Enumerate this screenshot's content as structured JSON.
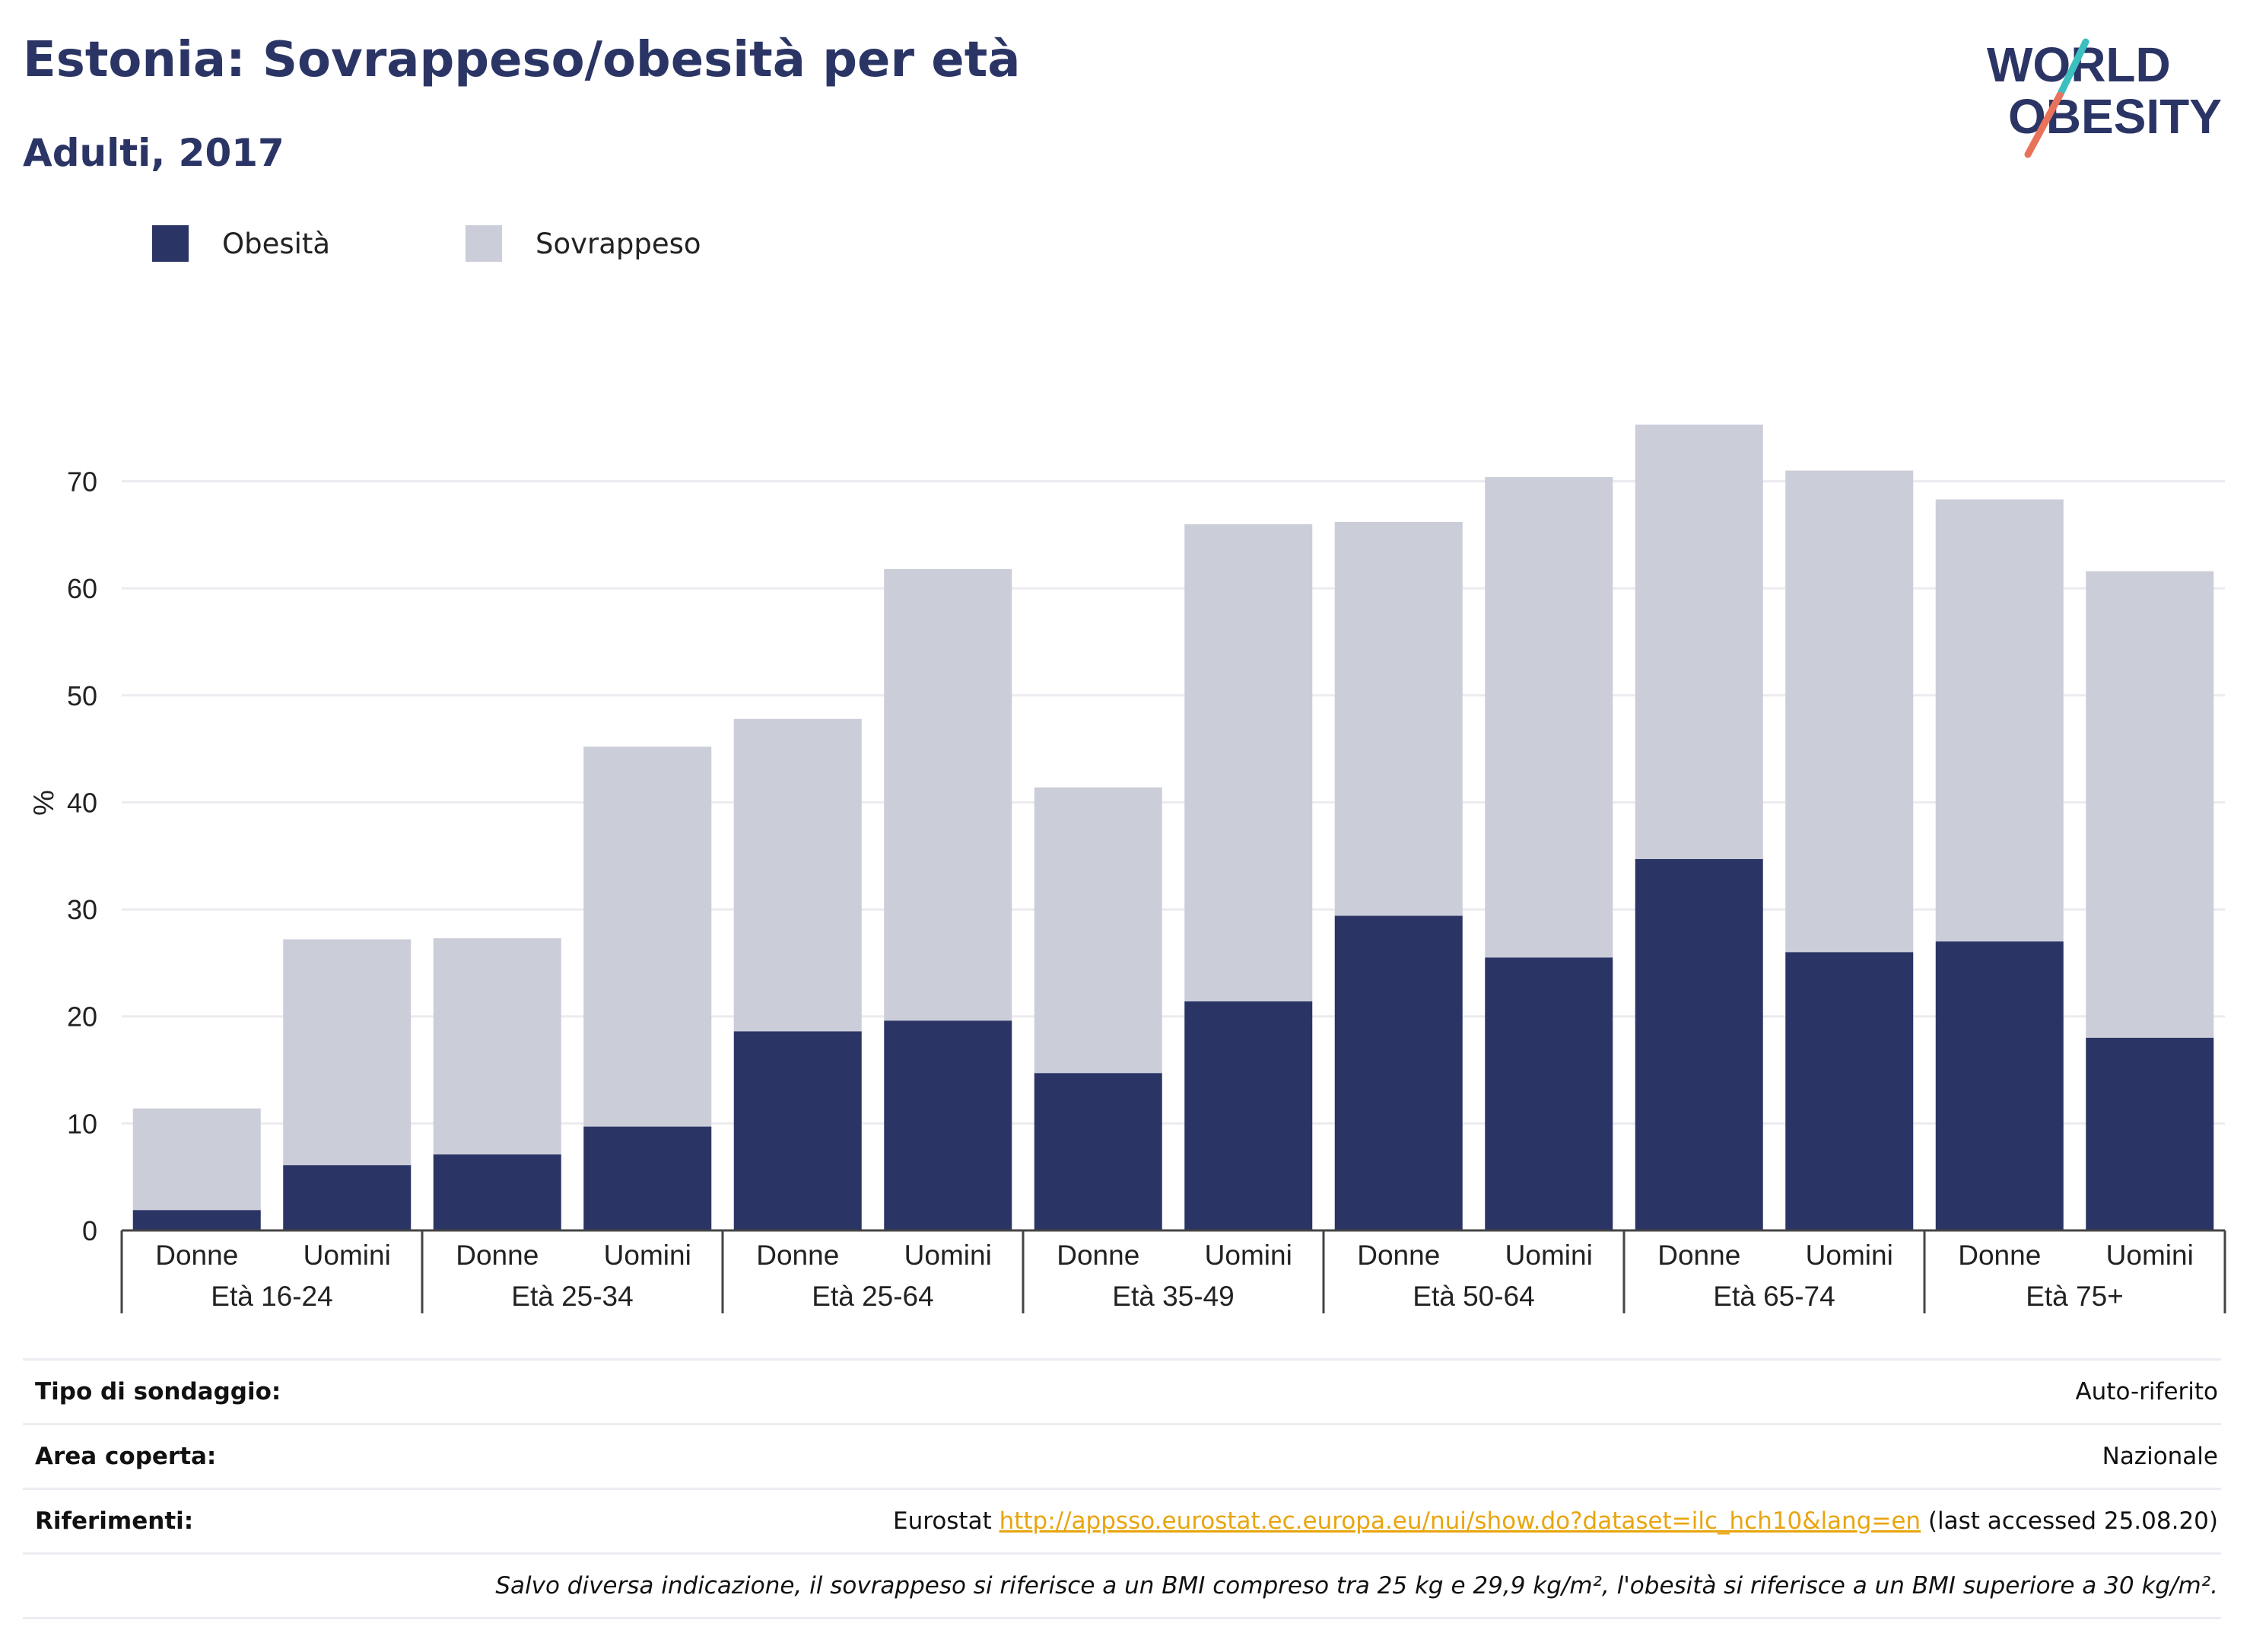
{
  "header": {
    "title": "Estonia: Sovrappeso/obesità per età",
    "subtitle": "Adulti, 2017"
  },
  "logo": {
    "line1": "WORLD",
    "line2": "OBESITY",
    "colors": {
      "text": "#2b3565",
      "slash_teal": "#3bbfbf",
      "slash_coral": "#e8735a"
    }
  },
  "colors": {
    "obesity": "#2b3565",
    "overweight": "#cbcdd9",
    "grid": "#ebebf0",
    "axis": "#444444",
    "link": "#e8a50f"
  },
  "chart_data": {
    "type": "bar",
    "stacked": true,
    "ylabel": "%",
    "ylim": [
      0,
      78
    ],
    "yticks": [
      0,
      10,
      20,
      30,
      40,
      50,
      60,
      70
    ],
    "grid": true,
    "legend_position": "top-left",
    "groups": [
      "Età 16-24",
      "Età 25-34",
      "Età 25-64",
      "Età 35-49",
      "Età 50-64",
      "Età 65-74",
      "Età 75+"
    ],
    "categories": [
      "Donne",
      "Uomini",
      "Donne",
      "Uomini",
      "Donne",
      "Uomini",
      "Donne",
      "Uomini",
      "Donne",
      "Uomini",
      "Donne",
      "Uomini",
      "Donne",
      "Uomini"
    ],
    "series": [
      {
        "name": "Obesità",
        "values": [
          1.9,
          6.1,
          7.1,
          9.7,
          18.6,
          19.6,
          14.7,
          21.4,
          29.4,
          25.5,
          34.7,
          26.0,
          27.0,
          18.0
        ]
      },
      {
        "name": "Sovrappeso",
        "values": [
          9.5,
          21.1,
          20.2,
          35.5,
          29.2,
          42.2,
          26.7,
          44.6,
          36.8,
          44.9,
          40.6,
          45.0,
          41.3,
          43.6
        ]
      }
    ]
  },
  "info": {
    "rows": [
      {
        "label": "Tipo di sondaggio:",
        "value": "Auto-riferito"
      },
      {
        "label": "Area coperta:",
        "value": "Nazionale"
      }
    ],
    "references": {
      "label": "Riferimenti:",
      "prefix": "Eurostat ",
      "link": "http://appsso.eurostat.ec.europa.eu/nui/show.do?dataset=ilc_hch10&lang=en",
      "suffix": " (last accessed 25.08.20)"
    },
    "note": "Salvo diversa indicazione, il sovrappeso si riferisce a un BMI compreso tra 25 kg e 29,9 kg/m², l'obesità si riferisce a un BMI superiore a 30 kg/m²."
  }
}
